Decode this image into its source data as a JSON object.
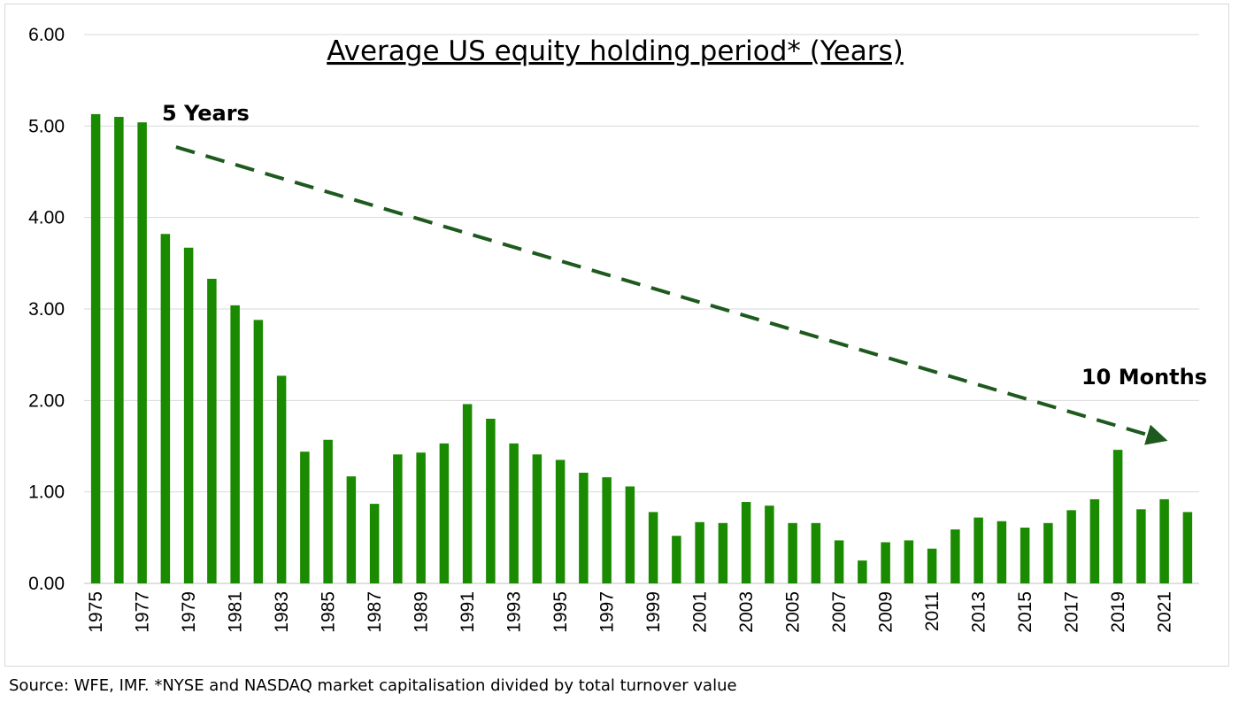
{
  "chart_data": {
    "type": "bar",
    "title": "Average US equity holding period* (Years)",
    "xlabel": "",
    "ylabel": "",
    "ylim": [
      0,
      6
    ],
    "yticks": [
      "0.00",
      "1.00",
      "2.00",
      "3.00",
      "4.00",
      "5.00",
      "6.00"
    ],
    "grid": true,
    "legend": "none",
    "bar_color": "#1a8a00",
    "trend_color": "#1e5a1e",
    "categories": [
      "1975",
      "1976",
      "1977",
      "1978",
      "1979",
      "1980",
      "1981",
      "1982",
      "1983",
      "1984",
      "1985",
      "1986",
      "1987",
      "1988",
      "1989",
      "1990",
      "1991",
      "1992",
      "1993",
      "1994",
      "1995",
      "1996",
      "1997",
      "1998",
      "1999",
      "2000",
      "2001",
      "2002",
      "2003",
      "2004",
      "2005",
      "2006",
      "2007",
      "2008",
      "2009",
      "2010",
      "2011",
      "2012",
      "2013",
      "2014",
      "2015",
      "2016",
      "2017",
      "2018",
      "2019",
      "2020",
      "2021",
      "2022"
    ],
    "xtick_labels": [
      "1975",
      "1977",
      "1979",
      "1981",
      "1983",
      "1985",
      "1987",
      "1989",
      "1991",
      "1993",
      "1995",
      "1997",
      "1999",
      "2001",
      "2003",
      "2005",
      "2007",
      "2009",
      "2011",
      "2013",
      "2015",
      "2017",
      "2019",
      "2021"
    ],
    "values": [
      5.13,
      5.1,
      5.04,
      3.82,
      3.67,
      3.33,
      3.04,
      2.88,
      2.27,
      1.44,
      1.57,
      1.17,
      0.87,
      1.41,
      1.43,
      1.53,
      1.96,
      1.8,
      1.53,
      1.41,
      1.35,
      1.21,
      1.16,
      1.06,
      0.78,
      0.52,
      0.67,
      0.66,
      0.89,
      0.85,
      0.66,
      0.66,
      0.47,
      0.25,
      0.45,
      0.47,
      0.38,
      0.59,
      0.72,
      0.68,
      0.61,
      0.66,
      0.8,
      0.92,
      1.46,
      0.81,
      0.92,
      0.78
    ],
    "annotations": [
      {
        "text": "5 Years"
      },
      {
        "text": "10 Months"
      }
    ],
    "trend_arrow": {
      "from": [
        1978,
        4.77
      ],
      "to": [
        2021,
        1.57
      ]
    }
  },
  "footer": {
    "source": "Source: WFE, IMF. *NYSE and NASDAQ market capitalisation divided by total turnover value"
  }
}
